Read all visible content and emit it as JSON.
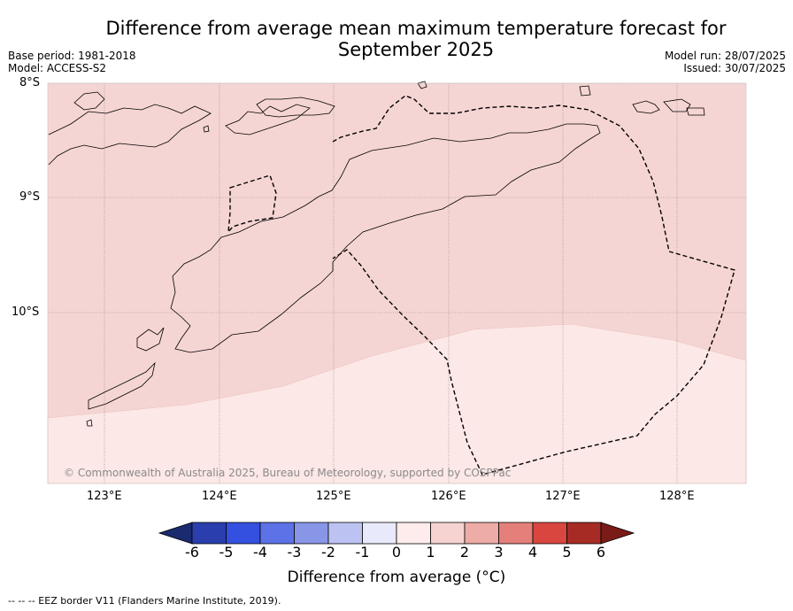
{
  "header": {
    "title_line1": "Difference from average mean maximum temperature forecast for",
    "title_line2": "September 2025",
    "base_period": "Base period: 1981-2018",
    "model": "Model: ACCESS-S2",
    "model_run": "Model run: 28/07/2025",
    "issued": "Issued: 30/07/2025"
  },
  "map": {
    "lat_labels": [
      "8°S",
      "9°S",
      "10°S"
    ],
    "lon_labels": [
      "123°E",
      "124°E",
      "125°E",
      "126°E",
      "127°E",
      "128°E"
    ],
    "anomaly_fill_colors": {
      "upper_zone_1_to_2": "#f5d5d4",
      "lower_zone_0_to_1": "#fce8e6"
    },
    "copyright": "© Commonwealth of Australia 2025, Bureau of Meteorology, supported by COSPPac"
  },
  "colorbar": {
    "ticks": [
      "-6",
      "-5",
      "-4",
      "-3",
      "-2",
      "-1",
      "0",
      "1",
      "2",
      "3",
      "4",
      "5",
      "6"
    ],
    "colors": [
      "#1a2a6e",
      "#2a3fad",
      "#3450e0",
      "#5c72e6",
      "#8896e8",
      "#bcc3f2",
      "#e8eafb",
      "#fdeceb",
      "#f6d3d1",
      "#eeaca7",
      "#e47f79",
      "#d8463f",
      "#a72b25",
      "#7a1b17"
    ],
    "label": "Difference from average ($^\\circ$C)",
    "label_display": "Difference from average (°C)"
  },
  "footnote": "--  --  -- EEZ border V11 (Flanders Marine Institute, 2019)."
}
